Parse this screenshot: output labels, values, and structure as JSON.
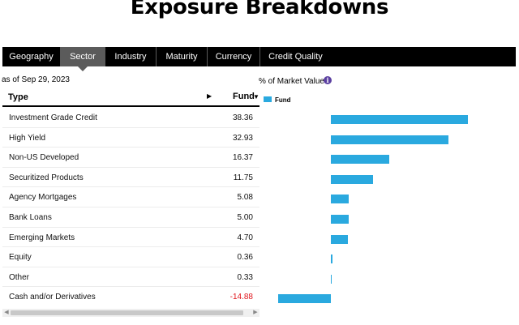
{
  "page_title": "Exposure Breakdowns",
  "tabs": [
    {
      "label": "Geography",
      "active": false
    },
    {
      "label": "Sector",
      "active": true
    },
    {
      "label": "Industry",
      "active": false
    },
    {
      "label": "Maturity",
      "active": false
    },
    {
      "label": "Currency",
      "active": false
    },
    {
      "label": "Credit Quality",
      "active": false
    }
  ],
  "as_of": "as of Sep 29, 2023",
  "market_value_label": "% of Market Value",
  "info_icon_glyph": "i",
  "table": {
    "col_type": "Type",
    "col_fund": "Fund",
    "sort_glyph": "▶",
    "sort_dir_glyph": "▼"
  },
  "legend": {
    "label": "Fund",
    "color": "#2aa9df"
  },
  "rows": [
    {
      "label": "Investment Grade Credit",
      "value": "38.36",
      "num": 38.36
    },
    {
      "label": "High Yield",
      "value": "32.93",
      "num": 32.93
    },
    {
      "label": "Non-US Developed",
      "value": "16.37",
      "num": 16.37
    },
    {
      "label": "Securitized Products",
      "value": "11.75",
      "num": 11.75
    },
    {
      "label": "Agency Mortgages",
      "value": "5.08",
      "num": 5.08
    },
    {
      "label": "Bank Loans",
      "value": "5.00",
      "num": 5.0
    },
    {
      "label": "Emerging Markets",
      "value": "4.70",
      "num": 4.7
    },
    {
      "label": "Equity",
      "value": "0.36",
      "num": 0.36
    },
    {
      "label": "Other",
      "value": "0.33",
      "num": 0.33
    },
    {
      "label": "Cash and/or Derivatives",
      "value": "-14.88",
      "num": -14.88
    }
  ],
  "chart_data": {
    "type": "bar",
    "orientation": "horizontal",
    "categories": [
      "Investment Grade Credit",
      "High Yield",
      "Non-US Developed",
      "Securitized Products",
      "Agency Mortgages",
      "Bank Loans",
      "Emerging Markets",
      "Equity",
      "Other",
      "Cash and/or Derivatives"
    ],
    "series": [
      {
        "name": "Fund",
        "values": [
          38.36,
          32.93,
          16.37,
          11.75,
          5.08,
          5.0,
          4.7,
          0.36,
          0.33,
          -14.88
        ]
      }
    ],
    "ylabel": "% of Market Value",
    "legend": "top-left",
    "grid": false
  },
  "scrollbar": {
    "left_glyph": "◀",
    "right_glyph": "▶"
  }
}
